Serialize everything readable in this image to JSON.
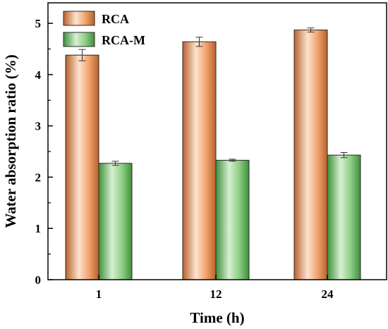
{
  "chart_data": {
    "type": "bar",
    "title": "",
    "xlabel": "Time (h)",
    "ylabel": "Water absorption ratio (%)",
    "categories": [
      "1",
      "12",
      "24"
    ],
    "ylim": [
      0,
      5.4
    ],
    "yticks": [
      "0",
      "1",
      "2",
      "3",
      "4",
      "5"
    ],
    "legend_position": "top-left",
    "grid": false,
    "series": [
      {
        "name": "RCA",
        "values": [
          4.38,
          4.64,
          4.87
        ],
        "errors": [
          0.11,
          0.09,
          0.04
        ],
        "color_light": "#fde3cf",
        "color_mid": "#f2a46f",
        "color_dark": "#b8622c",
        "edge": "#2a2a2a"
      },
      {
        "name": "RCA-M",
        "values": [
          2.27,
          2.33,
          2.43
        ],
        "errors": [
          0.04,
          0.02,
          0.05
        ],
        "color_light": "#d7f0d2",
        "color_mid": "#8fcf86",
        "color_dark": "#3f8f3b",
        "edge": "#2a2a2a"
      }
    ]
  }
}
